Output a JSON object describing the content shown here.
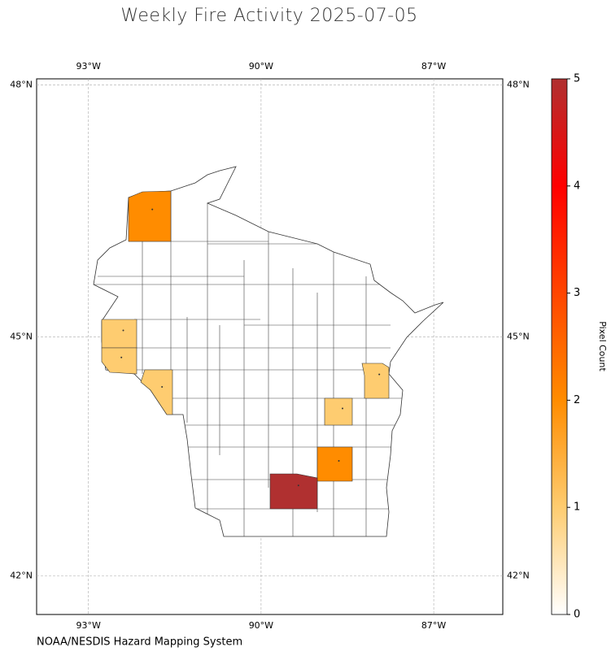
{
  "chart_data": {
    "type": "map",
    "title": "Weekly Fire Activity 2025-07-05",
    "source": "NOAA/NESDIS Hazard Mapping System",
    "xlim": [
      -93.9,
      -85.8
    ],
    "ylim": [
      41.5,
      48.07
    ],
    "xticks": [
      {
        "value": -93,
        "label": "93°W"
      },
      {
        "value": -90,
        "label": "90°W"
      },
      {
        "value": -87,
        "label": "87°W"
      }
    ],
    "yticks": [
      {
        "value": 42,
        "label": "42°N"
      },
      {
        "value": 45,
        "label": "45°N"
      },
      {
        "value": 48,
        "label": "48°N"
      }
    ],
    "grid": true,
    "values": [
      2,
      1,
      1,
      1,
      1,
      1,
      2,
      5
    ],
    "colorbar": {
      "label": "Pixel Count",
      "clim": [
        0,
        5
      ],
      "ticks": [
        0,
        1,
        2,
        3,
        4,
        5
      ],
      "colormap": [
        "#ffffff",
        "#fecc70",
        "#ff8c00",
        "#ff4500",
        "#ff0000",
        "#b03030"
      ]
    }
  }
}
